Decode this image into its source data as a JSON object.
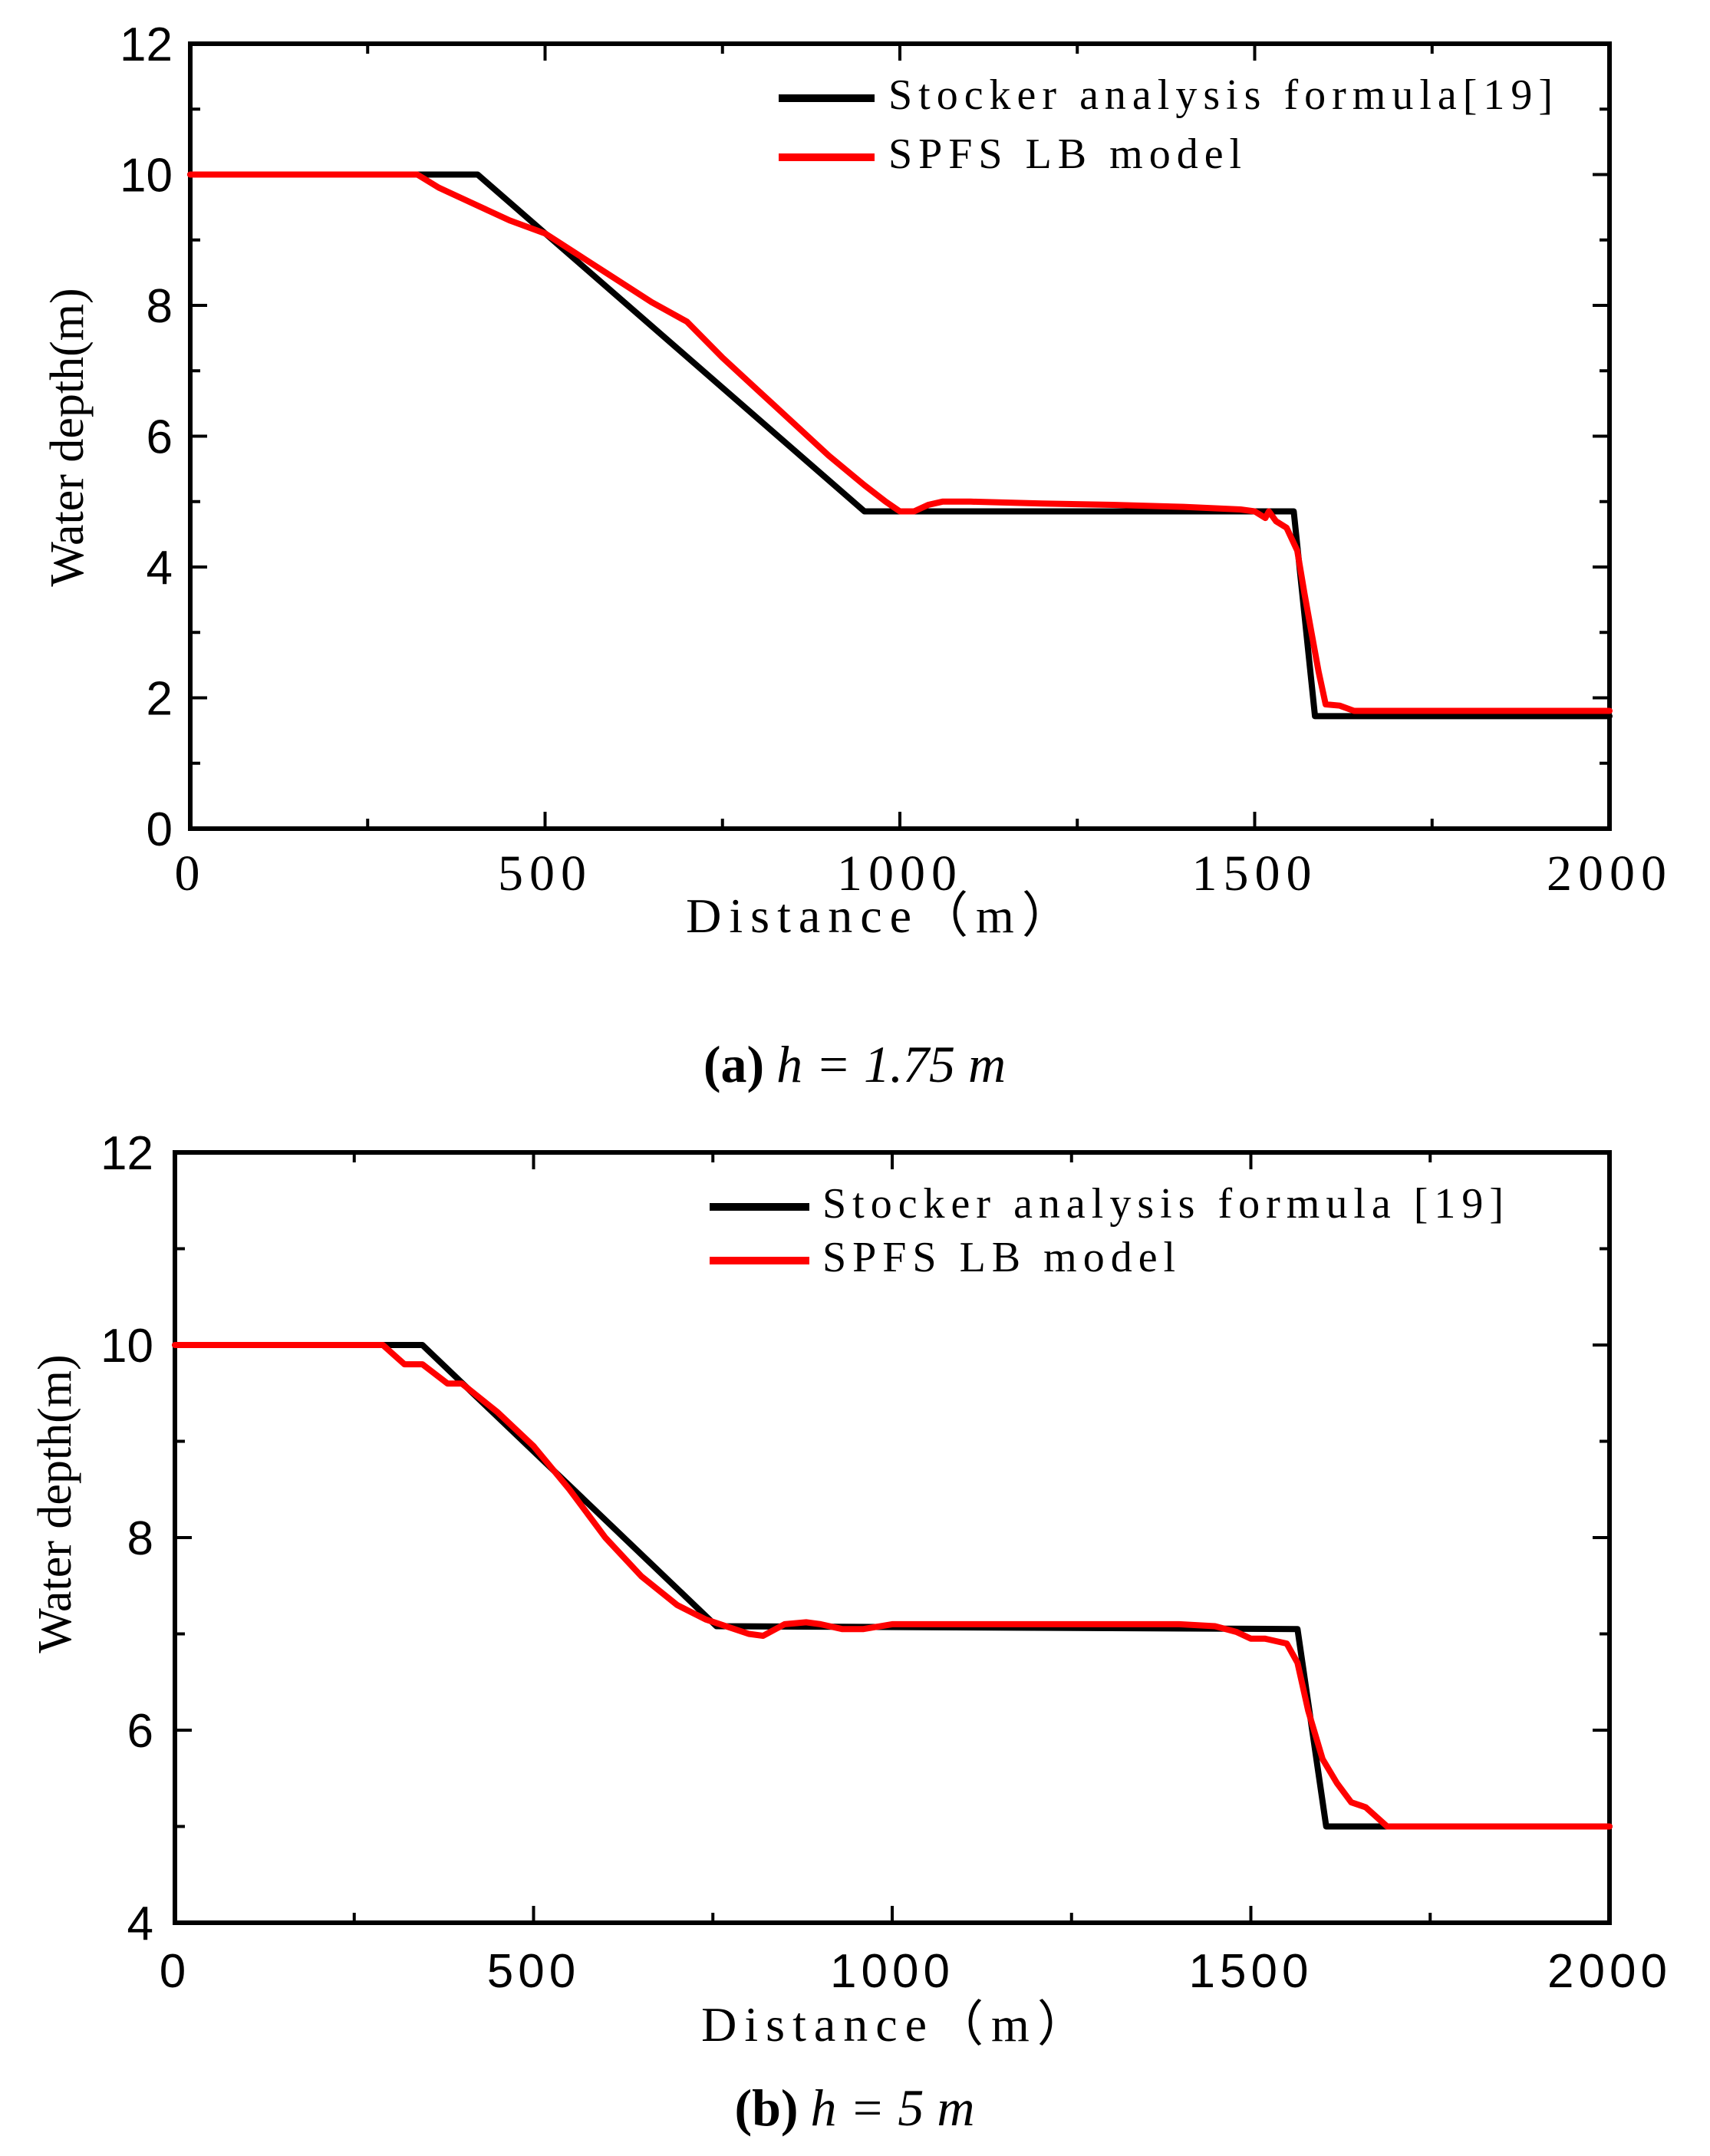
{
  "chart_data": [
    {
      "type": "line",
      "xlabel": "Distance（m）",
      "ylabel": "Water depth(m)",
      "xlim": [
        0,
        2000
      ],
      "ylim": [
        0,
        12
      ],
      "xticks": [
        0,
        500,
        1000,
        1500,
        2000
      ],
      "xtick_labels": [
        "0",
        "500",
        "1000",
        "1500",
        "2000"
      ],
      "yticks": [
        0,
        2,
        4,
        6,
        8,
        10,
        12
      ],
      "ytick_labels": [
        "0",
        "2",
        "4",
        "6",
        "8",
        "10",
        "12"
      ],
      "legend_position": "top-right",
      "caption": {
        "label": "(a)",
        "text": "h = 1.75 m"
      },
      "series": [
        {
          "name": "Stocker analysis formula[19]",
          "color": "#000000",
          "x": [
            0,
            405,
            950,
            1555,
            1585,
            2000
          ],
          "y": [
            10.0,
            10.0,
            4.85,
            4.85,
            1.72,
            1.72
          ]
        },
        {
          "name": "SPFS LB model",
          "color": "#ff0000",
          "x": [
            0,
            320,
            350,
            400,
            450,
            500,
            550,
            600,
            650,
            700,
            750,
            800,
            850,
            900,
            950,
            980,
            1000,
            1020,
            1040,
            1060,
            1100,
            1200,
            1300,
            1400,
            1480,
            1500,
            1515,
            1520,
            1530,
            1545,
            1560,
            1570,
            1580,
            1590,
            1600,
            1620,
            1640,
            1700,
            1800,
            2000
          ],
          "y": [
            10.0,
            10.0,
            9.8,
            9.55,
            9.3,
            9.1,
            8.75,
            8.4,
            8.05,
            7.75,
            7.2,
            6.7,
            6.2,
            5.7,
            5.25,
            5.0,
            4.85,
            4.85,
            4.95,
            5.0,
            5.0,
            4.97,
            4.95,
            4.92,
            4.88,
            4.85,
            4.75,
            4.85,
            4.7,
            4.6,
            4.25,
            3.6,
            3.0,
            2.4,
            1.9,
            1.88,
            1.8,
            1.8,
            1.8,
            1.8
          ]
        }
      ]
    },
    {
      "type": "line",
      "xlabel": "Distance（m）",
      "ylabel": "Water depth(m)",
      "xlim": [
        0,
        2000
      ],
      "ylim": [
        4,
        12
      ],
      "xticks": [
        0,
        500,
        1000,
        1500,
        2000
      ],
      "xtick_labels": [
        "0",
        "500",
        "1000",
        "1500",
        "2000"
      ],
      "yticks": [
        4,
        6,
        8,
        10,
        12
      ],
      "ytick_labels": [
        "4",
        "6",
        "8",
        "10",
        "12"
      ],
      "legend_position": "top-right",
      "caption": {
        "label": "(b)",
        "text": "h = 5 m"
      },
      "series": [
        {
          "name": "Stocker analysis formula [19]",
          "color": "#000000",
          "x": [
            0,
            345,
            755,
            1565,
            1605,
            2000
          ],
          "y": [
            10.0,
            10.0,
            7.08,
            7.05,
            5.0,
            5.0
          ]
        },
        {
          "name": "SPFS LB model",
          "color": "#ff0000",
          "x": [
            0,
            290,
            320,
            345,
            380,
            400,
            450,
            500,
            550,
            600,
            650,
            700,
            740,
            760,
            800,
            820,
            850,
            880,
            900,
            930,
            960,
            1000,
            1100,
            1200,
            1300,
            1400,
            1450,
            1480,
            1500,
            1520,
            1550,
            1565,
            1580,
            1600,
            1620,
            1640,
            1660,
            1690,
            1800,
            2000
          ],
          "y": [
            10.0,
            10.0,
            9.8,
            9.8,
            9.6,
            9.6,
            9.3,
            8.95,
            8.5,
            8.0,
            7.6,
            7.3,
            7.15,
            7.1,
            7.0,
            6.98,
            7.1,
            7.12,
            7.1,
            7.05,
            7.05,
            7.1,
            7.1,
            7.1,
            7.1,
            7.1,
            7.08,
            7.02,
            6.95,
            6.95,
            6.9,
            6.7,
            6.2,
            5.7,
            5.45,
            5.25,
            5.2,
            5.0,
            5.0,
            5.0
          ]
        }
      ]
    }
  ]
}
